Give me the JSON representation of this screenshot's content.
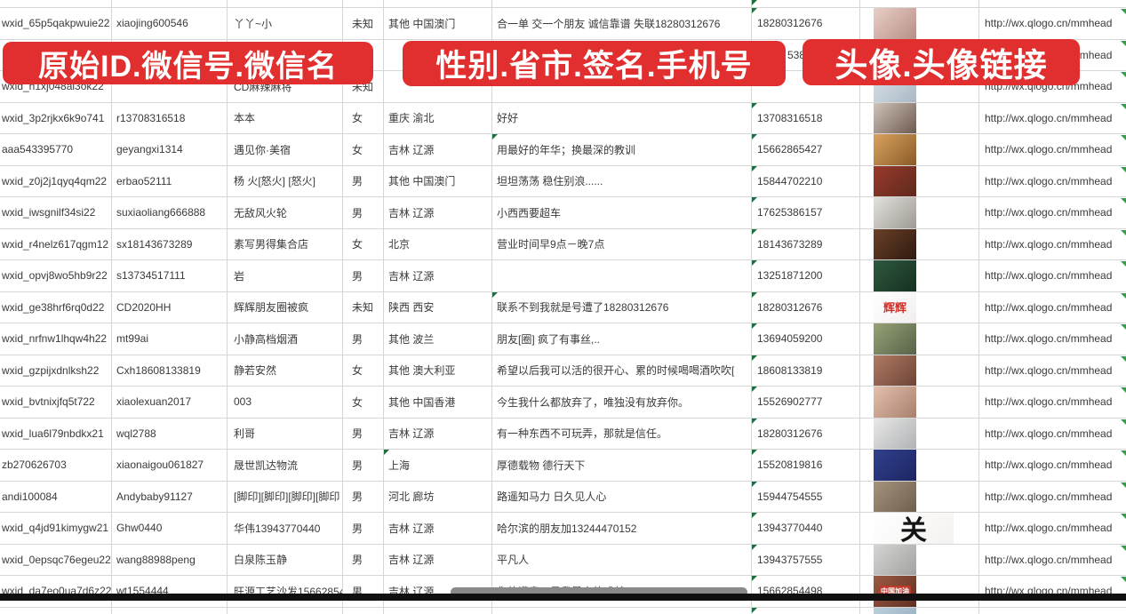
{
  "banners": [
    {
      "text": "原始ID.微信号.微信名"
    },
    {
      "text": "性别.省市.签名.手机号"
    },
    {
      "text": "头像.头像链接"
    }
  ],
  "colors": {
    "banner_red": "#e02f2e",
    "flag_green": "#1d6f42",
    "grid": "#d6d6d6",
    "text": "#3a3a3a",
    "bottom_bar": "#101010",
    "handle_gray": "#8a8a8a"
  },
  "table": {
    "columns": [
      "wxid",
      "alias",
      "name",
      "gender",
      "region",
      "signature",
      "phone",
      "avatar",
      "url"
    ],
    "rows": [
      {
        "sliver": true,
        "wxid": "",
        "alias": "",
        "name": "",
        "gender": "",
        "region": "",
        "signature": "",
        "phone": "",
        "url": "",
        "flags": [
          "phone"
        ]
      },
      {
        "wxid": "wxid_65p5qakpwuie22",
        "alias": "xiaojing600546",
        "name": "丫丫~小",
        "gender": "未知",
        "region": "其他 中国澳门",
        "signature": "合一单 交一个朋友 诚信靠谱 失联18280312676",
        "phone": "18280312676",
        "url": "http://wx.qlogo.cn/mmhead",
        "avatar": {
          "c1": "#e8cfc6",
          "c2": "#b78f88"
        },
        "flags": [
          "phone",
          "url"
        ]
      },
      {
        "wxid": "",
        "alias": "",
        "name": "",
        "gender": "",
        "region": "",
        "signature": "",
        "phone_fragment": "5386",
        "phone": "",
        "url": "http://wx.qlogo.cn/mmhead",
        "avatar": {
          "c1": "#8f86c0",
          "c2": "#5f5696"
        },
        "flags": [
          "url"
        ]
      },
      {
        "wxid": "wxid_h1xj048al3ok22",
        "alias": "",
        "name": "CD麻辣麻将",
        "gender": "未知",
        "region": "",
        "signature": "",
        "phone": "",
        "url": "http://wx.qlogo.cn/mmhead",
        "avatar": {
          "c1": "#d9e2ea",
          "c2": "#aab8c4"
        },
        "flags": [
          "url"
        ]
      },
      {
        "wxid": "wxid_3p2rjkx6k9o741",
        "alias": "r13708316518",
        "name": "本本",
        "gender": "女",
        "region": "重庆 渝北",
        "signature": "好好",
        "phone": "13708316518",
        "url": "http://wx.qlogo.cn/mmhead",
        "avatar": {
          "c1": "#cfc3b8",
          "c2": "#6e5a50"
        },
        "flags": [
          "phone",
          "url"
        ]
      },
      {
        "wxid": "aaa543395770",
        "alias": "geyangxi1314",
        "name": "遇见你·美宿",
        "gender": "女",
        "region": "吉林 辽源",
        "signature": "用最好的年华；换最深的教训",
        "phone": "15662865427",
        "url": "http://wx.qlogo.cn/mmhead",
        "avatar": {
          "c1": "#d9a35e",
          "c2": "#8a5a28"
        },
        "flags": [
          "phone",
          "sig",
          "url"
        ]
      },
      {
        "wxid": "wxid_z0j2j1qyq4qm22",
        "alias": "erbao52111",
        "name": "杨 火[怒火] [怒火]",
        "gender": "男",
        "region": "其他 中国澳门",
        "signature": "坦坦荡荡 稳住别浪......",
        "phone": "15844702210",
        "url": "http://wx.qlogo.cn/mmhead",
        "avatar": {
          "c1": "#99392c",
          "c2": "#5d2a1c"
        },
        "flags": [
          "phone",
          "url"
        ]
      },
      {
        "wxid": "wxid_iwsgnilf34si22",
        "alias": "suxiaoliang666888",
        "name": "无敌风火轮",
        "gender": "男",
        "region": "吉林 辽源",
        "signature": "小西西要超车",
        "phone": "17625386157",
        "url": "http://wx.qlogo.cn/mmhead",
        "avatar": {
          "c1": "#e3e1dc",
          "c2": "#9e9a94"
        },
        "flags": [
          "phone",
          "url"
        ]
      },
      {
        "wxid": "wxid_r4nelz617qgm12",
        "alias": "sx18143673289",
        "name": "素写男得集合店",
        "gender": "女",
        "region": "北京",
        "signature": "营业时间早9点－晚7点",
        "phone": "18143673289",
        "url": "http://wx.qlogo.cn/mmhead",
        "avatar": {
          "c1": "#6b4027",
          "c2": "#2e1a10"
        },
        "flags": [
          "phone",
          "url"
        ]
      },
      {
        "wxid": "wxid_opvj8wo5hb9r22",
        "alias": "s13734517111",
        "name": "岩",
        "gender": "男",
        "region": "吉林 辽源",
        "signature": "",
        "phone": "13251871200",
        "url": "http://wx.qlogo.cn/mmhead",
        "avatar": {
          "c1": "#2e5940",
          "c2": "#16301f"
        },
        "flags": [
          "phone",
          "url"
        ]
      },
      {
        "wxid": "wxid_ge38hrf6rq0d22",
        "alias": "CD2020HH",
        "name": "辉辉朋友圈被疯",
        "gender": "未知",
        "region": "陕西 西安",
        "signature": "联系不到我就是号遭了18280312676",
        "phone": "18280312676",
        "url": "http://wx.qlogo.cn/mmhead",
        "avatar": {
          "c1": "#ffffff",
          "c2": "#f2eeee",
          "label": "辉辉",
          "label_color": "#d03028",
          "label_size": 13
        },
        "flags": [
          "phone",
          "sig",
          "url"
        ]
      },
      {
        "wxid": "wxid_nrfnw1lhqw4h22",
        "alias": "mt99ai",
        "name": "小静高档烟酒",
        "gender": "男",
        "region": "其他 波兰",
        "signature": "朋友[圈] 疯了有事丝,..",
        "phone": "13694059200",
        "url": "http://wx.qlogo.cn/mmhead",
        "avatar": {
          "c1": "#97a275",
          "c2": "#57624a"
        },
        "flags": [
          "phone",
          "url"
        ]
      },
      {
        "wxid": "wxid_gzpijxdnlksh22",
        "alias": "Cxh18608133819",
        "name": "静若安然",
        "gender": "女",
        "region": "其他 澳大利亚",
        "signature": "希望以后我可以活的很开心、累的时候喝喝酒吹吹[",
        "phone": "18608133819",
        "url": "http://wx.qlogo.cn/mmhead",
        "avatar": {
          "c1": "#b07a64",
          "c2": "#6d4436"
        },
        "flags": [
          "phone",
          "url"
        ]
      },
      {
        "wxid": "wxid_bvtnixjfq5t722",
        "alias": "xiaolexuan2017",
        "name": "003",
        "gender": "女",
        "region": "其他 中国香港",
        "signature": "今生我什么都放弃了，唯独没有放弃你。",
        "phone": "15526902777",
        "url": "http://wx.qlogo.cn/mmhead",
        "avatar": {
          "c1": "#e3c0ad",
          "c2": "#a87f6d"
        },
        "flags": [
          "phone",
          "url"
        ]
      },
      {
        "wxid": "wxid_lua6l79nbdkx21",
        "alias": "wql2788",
        "name": "利哥",
        "gender": "男",
        "region": "吉林 辽源",
        "signature": "有一种东西不可玩弄，那就是信任。",
        "phone": "18280312676",
        "url": "http://wx.qlogo.cn/mmhead",
        "avatar": {
          "c1": "#e8e8e6",
          "c2": "#b0b2b5"
        },
        "flags": [
          "phone",
          "url"
        ]
      },
      {
        "wxid": "zb270626703",
        "alias": "xiaonaigou061827",
        "name": "晟世凯达物流",
        "gender": "男",
        "region": "上海",
        "signature": "厚德载物 德行天下",
        "phone": "15520819816",
        "url": "http://wx.qlogo.cn/mmhead",
        "avatar": {
          "c1": "#32418f",
          "c2": "#1b2560"
        },
        "flags": [
          "phone",
          "region",
          "url"
        ]
      },
      {
        "wxid": "andi100084",
        "alias": "Andybaby91127",
        "name": "[脚印][脚印][脚印][脚印",
        "gender": "男",
        "region": "河北 廊坊",
        "signature": "路遥知马力 日久见人心",
        "phone": "15944754555",
        "url": "http://wx.qlogo.cn/mmhead",
        "avatar": {
          "c1": "#a5937d",
          "c2": "#6e5f4e"
        },
        "flags": [
          "phone",
          "url"
        ]
      },
      {
        "wxid": "wxid_q4jd91kimygw21",
        "alias": "Ghw0440",
        "name": "华伟13943770440",
        "gender": "男",
        "region": "吉林 辽源",
        "signature": "哈尔滨的朋友加13244470152",
        "phone": "13943770440",
        "url": "http://wx.qlogo.cn/mmhead",
        "avatar": {
          "c1": "#ffffff",
          "c2": "#f4f2f0",
          "label": "关",
          "label_color": "#151515",
          "label_size": 30,
          "w": 90
        },
        "flags": [
          "phone",
          "url"
        ]
      },
      {
        "wxid": "wxid_0epsqc76egeu22",
        "alias": "wang88988peng",
        "name": "白泉陈玉静",
        "gender": "男",
        "region": "吉林 辽源",
        "signature": "平凡人",
        "phone": "13943757555",
        "url": "http://wx.qlogo.cn/mmhead",
        "avatar": {
          "c1": "#d5d5d3",
          "c2": "#a2a2a0"
        },
        "flags": [
          "phone",
          "url"
        ]
      },
      {
        "wxid": "wxid_da7eo0ua7d6z22",
        "alias": "wt1554444",
        "name": "旺源工艺沙发15662854",
        "gender": "男",
        "region": "吉林 辽源",
        "signature": "您的满意，是我最大的成就",
        "phone": "15662854498",
        "url": "http://wx.qlogo.cn/mmhead",
        "avatar": {
          "c1": "#9b5a44",
          "c2": "#5f3022",
          "label": "中国加油",
          "label_color": "#ffffff",
          "label_size": 8,
          "label_bg": "#c0392b"
        },
        "flags": [
          "phone",
          "url"
        ]
      },
      {
        "partial": true,
        "wxid": "",
        "alias": "",
        "name": "",
        "gender": "",
        "region": "",
        "signature": "",
        "phone": "",
        "url": "",
        "avatar": {
          "c1": "#bcd0de",
          "c2": "#8fa8ba"
        },
        "flags": [
          "phone"
        ]
      }
    ]
  }
}
